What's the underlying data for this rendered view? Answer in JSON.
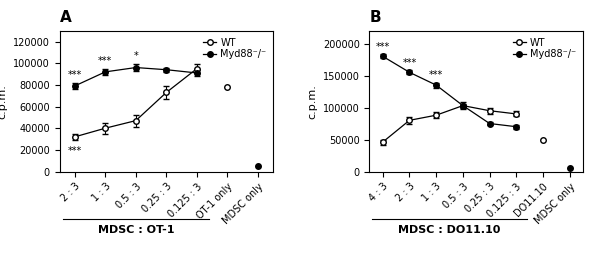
{
  "chart_data": [
    {
      "type": "line",
      "title": "A",
      "x_label": "MDSC : OT-1",
      "y_label": "c.p.m.",
      "categories": [
        "2 : 3",
        "1 : 3",
        "0.5 : 3",
        "0.25 : 3",
        "0.125 : 3",
        "OT-1 only",
        "MDSC only"
      ],
      "color": "black",
      "ylim": [
        0,
        130000
      ],
      "yticks": [
        0,
        20000,
        40000,
        60000,
        80000,
        100000,
        120000
      ],
      "legend": "upper right",
      "series": [
        {
          "name": "WT",
          "type": "line",
          "color": "white",
          "marker": "o",
          "line_style": "solid",
          "values": [
            32000,
            40000,
            47000,
            73000,
            95000,
            null,
            null
          ],
          "errors": [
            3000,
            5000,
            5500,
            6000,
            4000,
            null,
            null
          ]
        },
        {
          "name": "Myd88⁻/⁻",
          "type": "line",
          "color": "black",
          "marker": "o",
          "line_style": "solid",
          "values": [
            79000,
            92000,
            96000,
            94000,
            91000,
            null,
            null
          ],
          "errors": [
            3000,
            2500,
            3000,
            2000,
            2500,
            null,
            null
          ]
        },
        {
          "name": "WT",
          "type": "scatter",
          "color": "white",
          "marker": "o",
          "line_style": "none",
          "values": [
            null,
            null,
            null,
            null,
            null,
            78000,
            null
          ]
        },
        {
          "name": "Myd88⁻/⁻",
          "type": "scatter",
          "color": "black",
          "marker": "o",
          "line_style": "none",
          "values": [
            null,
            null,
            null,
            null,
            null,
            null,
            5000
          ]
        }
      ],
      "annotations": [
        {
          "text": "***",
          "category": "2 : 3",
          "series": "Myd88⁻/⁻",
          "position": "above"
        },
        {
          "text": "***",
          "category": "1 : 3",
          "series": "Myd88⁻/⁻",
          "position": "above"
        },
        {
          "text": "*",
          "category": "0.5 : 3",
          "series": "Myd88⁻/⁻",
          "position": "above"
        },
        {
          "text": "***",
          "category": "2 : 3",
          "series": "WT",
          "position": "below"
        }
      ]
    },
    {
      "type": "line",
      "title": "B",
      "x_label": "MDSC : DO11.10",
      "y_label": "c.p.m.",
      "categories": [
        "4 : 3",
        "2 : 3",
        "1 : 3",
        "0.5 : 3",
        "0.25 : 3",
        "0.125 : 3",
        "DO11.10",
        "MDSC only"
      ],
      "color": "black",
      "ylim": [
        0,
        220000
      ],
      "yticks": [
        0,
        50000,
        100000,
        150000,
        200000
      ],
      "legend": "upper right",
      "series": [
        {
          "name": "WT",
          "type": "line",
          "color": "white",
          "marker": "o",
          "line_style": "solid",
          "values": [
            46000,
            80000,
            88000,
            103000,
            95000,
            90000,
            null,
            null
          ],
          "errors": [
            4000,
            5000,
            5000,
            5000,
            5000,
            4000,
            null,
            null
          ]
        },
        {
          "name": "Myd88⁻/⁻",
          "type": "line",
          "color": "black",
          "marker": "o",
          "line_style": "solid",
          "values": [
            180000,
            155000,
            135000,
            103000,
            75000,
            70000,
            null,
            null
          ],
          "errors": [
            3000,
            3000,
            4000,
            3000,
            3000,
            3000,
            null,
            null
          ]
        },
        {
          "name": "WT",
          "type": "scatter",
          "color": "white",
          "marker": "o",
          "line_style": "none",
          "values": [
            null,
            null,
            null,
            null,
            null,
            null,
            50000,
            null
          ]
        },
        {
          "name": "Myd88⁻/⁻",
          "type": "scatter",
          "color": "black",
          "marker": "o",
          "line_style": "none",
          "values": [
            null,
            null,
            null,
            null,
            null,
            null,
            null,
            5000
          ]
        }
      ],
      "annotations": [
        {
          "text": "***",
          "category": "4 : 3",
          "series": "Myd88⁻/⁻",
          "position": "above"
        },
        {
          "text": "***",
          "category": "2 : 3",
          "series": "Myd88⁻/⁻",
          "position": "above"
        },
        {
          "text": "***",
          "category": "1 : 3",
          "series": "Myd88⁻/⁻",
          "position": "above"
        }
      ]
    }
  ]
}
